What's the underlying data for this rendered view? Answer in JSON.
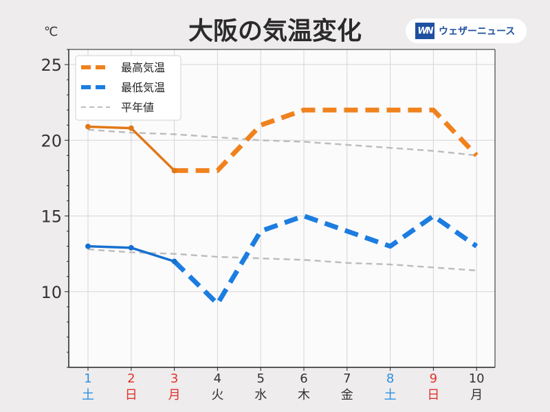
{
  "header": {
    "title": "大阪の気温変化",
    "unit": "℃",
    "brand_mark": "WN",
    "brand_name": "ウェザーニュース"
  },
  "colors": {
    "high": "#f0821e",
    "high_observed": "#e07818",
    "low": "#1c7de0",
    "low_observed": "#1670d0",
    "normal": "#bdbdbd",
    "weekday": "#333333",
    "saturday": "#2a8fe0",
    "holiday": "#e0302e"
  },
  "chart_data": {
    "type": "line",
    "title": "大阪の気温変化",
    "ylabel": "℃",
    "ylim": [
      5,
      26
    ],
    "yticks": [
      10,
      15,
      20,
      25
    ],
    "grid": true,
    "legend_position": "top-left",
    "categories": [
      "1",
      "2",
      "3",
      "4",
      "5",
      "6",
      "7",
      "8",
      "9",
      "10"
    ],
    "day_labels": [
      "土",
      "日",
      "月",
      "火",
      "水",
      "木",
      "金",
      "土",
      "日",
      "月"
    ],
    "day_types": [
      "saturday",
      "holiday",
      "holiday",
      "weekday",
      "weekday",
      "weekday",
      "weekday",
      "saturday",
      "holiday",
      "weekday"
    ],
    "observed_count": 3,
    "series": [
      {
        "name": "最高気温",
        "key": "high",
        "style": "dashed",
        "values": [
          20.9,
          20.8,
          18,
          18,
          21,
          22,
          22,
          22,
          22,
          19
        ]
      },
      {
        "name": "最低気温",
        "key": "low",
        "style": "dashed",
        "values": [
          13,
          12.9,
          12,
          9.2,
          14,
          15,
          14,
          13,
          15,
          13
        ]
      }
    ],
    "normals": {
      "name": "平年値",
      "high": [
        20.7,
        20.5,
        20.4,
        20.2,
        20.0,
        19.9,
        19.7,
        19.5,
        19.3,
        19.0
      ],
      "low": [
        12.8,
        12.6,
        12.5,
        12.3,
        12.2,
        12.1,
        11.9,
        11.8,
        11.6,
        11.4
      ]
    }
  }
}
